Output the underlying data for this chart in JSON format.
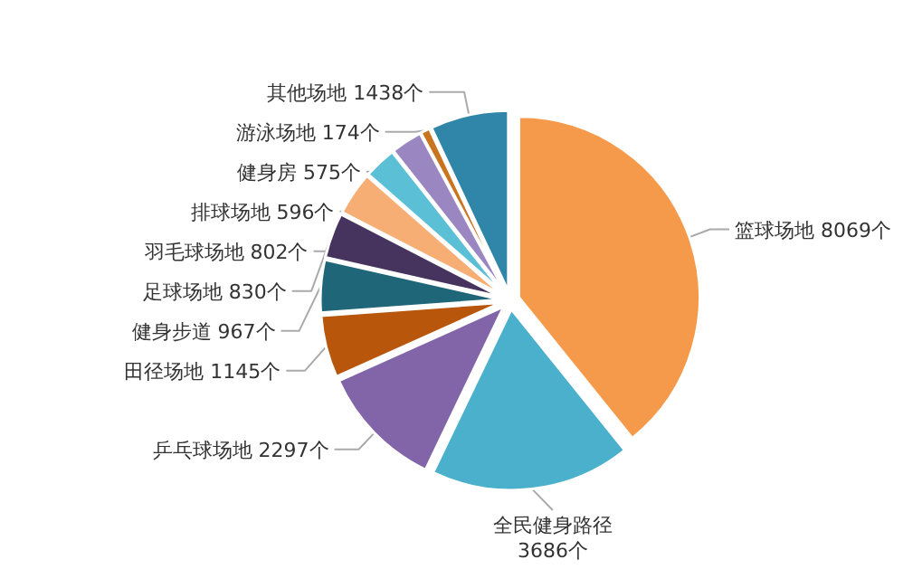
{
  "chart_data": {
    "type": "pie",
    "categories": [
      "篮球场地",
      "全民健身路径",
      "乒乓球场地",
      "田径场地",
      "健身步道",
      "足球场地",
      "羽毛球场地",
      "排球场地",
      "健身房",
      "游泳场地",
      "其他场地"
    ],
    "values": [
      8069,
      3686,
      2297,
      1145,
      967,
      830,
      802,
      596,
      575,
      174,
      1438
    ],
    "value_labels": [
      "8069个",
      "3686个",
      "2297个",
      "1145个",
      "967个",
      "830个",
      "802个",
      "596个",
      "575个",
      "174个",
      "1438个"
    ],
    "colors": [
      "#f59a4a",
      "#4ab0cc",
      "#8264a8",
      "#b8560c",
      "#1f6678",
      "#46335e",
      "#f7ae74",
      "#5bbfd6",
      "#9a86c0",
      "#c9741f",
      "#2f86a8"
    ]
  }
}
